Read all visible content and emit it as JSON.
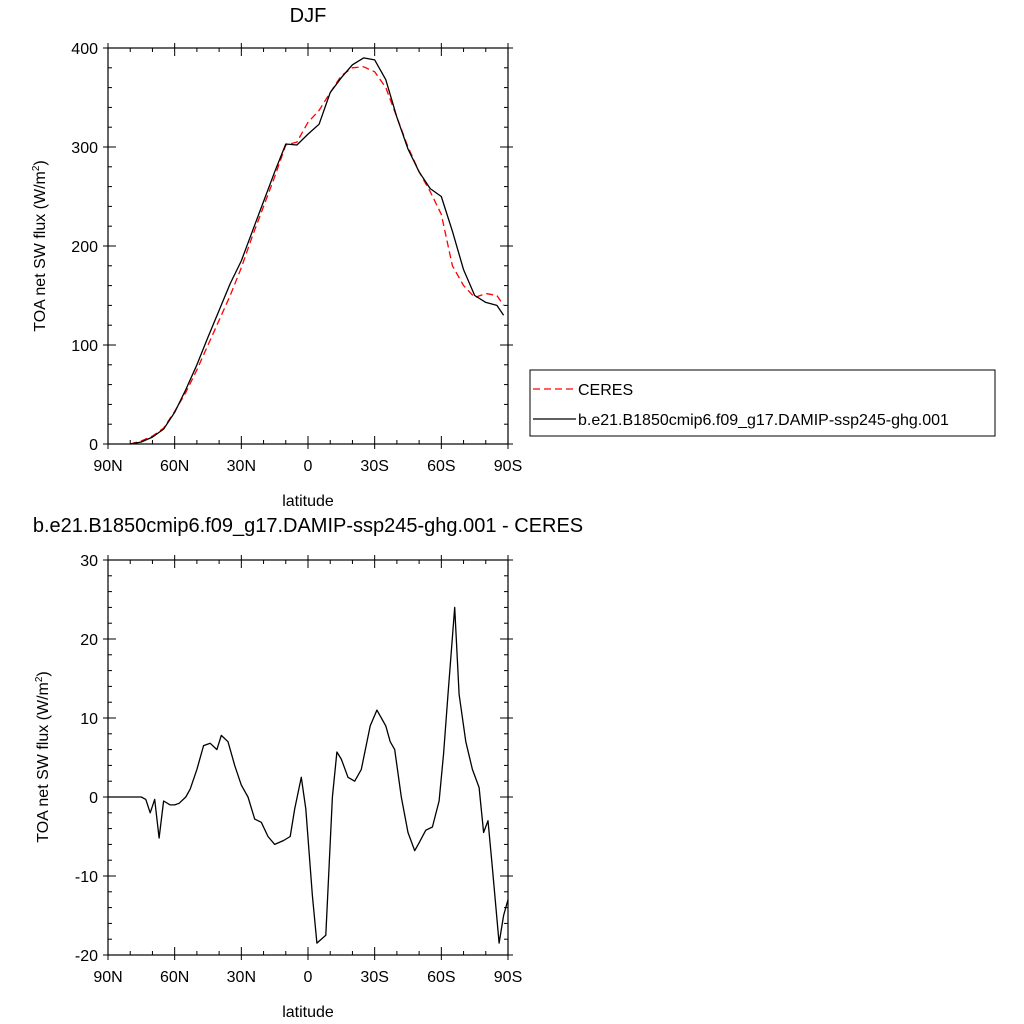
{
  "chart_data": [
    {
      "type": "line",
      "title": "DJF",
      "xlabel": "latitude",
      "ylabel": "TOA net SW flux (W/m",
      "ylabel_sup": "2",
      "ylabel_close": ")",
      "xlim": [
        -90,
        90
      ],
      "ylim": [
        0,
        400
      ],
      "xticks": [
        -90,
        -60,
        -30,
        0,
        30,
        60,
        90
      ],
      "xtick_labels": [
        "90N",
        "60N",
        "30N",
        "0",
        "30S",
        "60S",
        "90S"
      ],
      "yticks": [
        0,
        100,
        200,
        300,
        400
      ],
      "ytick_labels": [
        "0",
        "100",
        "200",
        "300",
        "400"
      ],
      "legend_position": "outside-right",
      "series": [
        {
          "name": "CERES",
          "color": "#ff0000",
          "dash": true,
          "x": [
            -80,
            -75,
            -70,
            -65,
            -60,
            -55,
            -50,
            -45,
            -40,
            -35,
            -30,
            -25,
            -20,
            -15,
            -10,
            -5,
            0,
            5,
            10,
            15,
            20,
            25,
            30,
            35,
            40,
            45,
            50,
            55,
            60,
            65,
            70,
            75,
            80,
            85,
            88
          ],
          "y": [
            0,
            3,
            8,
            16,
            33,
            52,
            75,
            100,
            125,
            150,
            178,
            210,
            240,
            270,
            302,
            305,
            325,
            337,
            355,
            372,
            380,
            381,
            376,
            360,
            330,
            300,
            275,
            255,
            232,
            180,
            160,
            148,
            152,
            150,
            140
          ]
        },
        {
          "name": "b.e21.B1850cmip6.f09_g17.DAMIP-ssp245-ghg.001",
          "color": "#000000",
          "dash": false,
          "x": [
            -80,
            -75,
            -70,
            -65,
            -60,
            -55,
            -50,
            -45,
            -40,
            -35,
            -30,
            -25,
            -20,
            -15,
            -10,
            -5,
            0,
            5,
            10,
            15,
            20,
            25,
            30,
            35,
            40,
            45,
            50,
            55,
            60,
            65,
            70,
            75,
            80,
            85,
            88
          ],
          "y": [
            0,
            2,
            7,
            15,
            32,
            55,
            80,
            108,
            135,
            162,
            185,
            215,
            245,
            275,
            303,
            302,
            313,
            323,
            355,
            370,
            383,
            390,
            388,
            368,
            330,
            298,
            275,
            258,
            250,
            215,
            176,
            150,
            143,
            140,
            130
          ]
        }
      ]
    },
    {
      "type": "line",
      "title": "b.e21.B1850cmip6.f09_g17.DAMIP-ssp245-ghg.001 - CERES",
      "xlabel": "latitude",
      "ylabel": "TOA net SW flux (W/m",
      "ylabel_sup": "2",
      "ylabel_close": ")",
      "xlim": [
        -90,
        90
      ],
      "ylim": [
        -20,
        30
      ],
      "xticks": [
        -90,
        -60,
        -30,
        0,
        30,
        60,
        90
      ],
      "xtick_labels": [
        "90N",
        "60N",
        "30N",
        "0",
        "30S",
        "60S",
        "90S"
      ],
      "yticks": [
        -20,
        -10,
        0,
        10,
        20,
        30
      ],
      "ytick_labels": [
        "-20",
        "-10",
        "0",
        "10",
        "20",
        "30"
      ],
      "series": [
        {
          "color": "#000000",
          "dash": false,
          "x": [
            -90,
            -80,
            -75,
            -73,
            -71,
            -69,
            -67,
            -65,
            -62,
            -60,
            -58,
            -55,
            -53,
            -50,
            -47,
            -44,
            -41,
            -39,
            -36,
            -33,
            -30,
            -27,
            -24,
            -21,
            -18,
            -15,
            -11,
            -8,
            -6,
            -3,
            -1,
            2,
            4,
            8,
            11,
            13,
            15,
            18,
            21,
            24,
            28,
            31,
            35,
            37,
            39,
            42,
            45,
            48,
            50,
            53,
            56,
            59,
            61,
            63,
            66,
            68,
            71,
            74,
            77,
            79,
            81,
            83,
            86,
            88,
            90
          ],
          "y": [
            0,
            0,
            0,
            -0.3,
            -2,
            -0.3,
            -5.2,
            -0.5,
            -1,
            -1,
            -0.8,
            0,
            1,
            3.5,
            6.5,
            6.8,
            6,
            7.8,
            7,
            4,
            1.5,
            0,
            -2.8,
            -3.2,
            -5,
            -6,
            -5.5,
            -5,
            -1.5,
            2.5,
            -1.5,
            -12.5,
            -18.5,
            -17.5,
            0,
            5.7,
            4.8,
            2.5,
            2,
            3.5,
            9,
            11,
            9,
            7,
            6,
            0,
            -4.5,
            -6.8,
            -5.8,
            -4.2,
            -3.8,
            -0.5,
            5.5,
            13,
            24,
            13,
            7,
            3.5,
            1.2,
            -4.5,
            -3,
            -9,
            -18.5,
            -15,
            -13
          ]
        }
      ]
    }
  ]
}
